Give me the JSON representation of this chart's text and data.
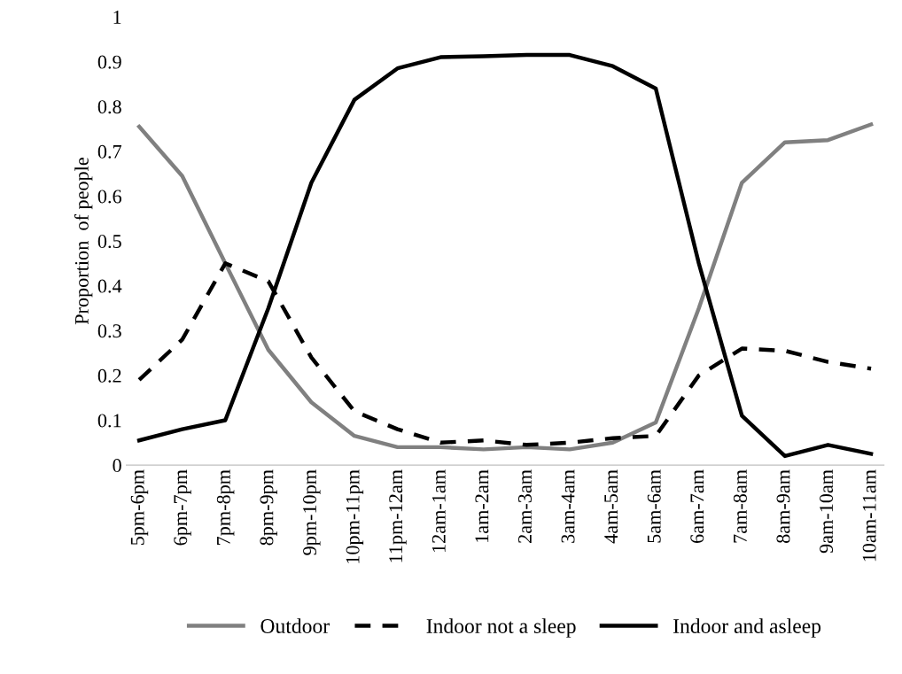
{
  "chart_data": {
    "type": "line",
    "ylabel": "Proportion  of people",
    "categories": [
      "5pm-6pm",
      "6pm-7pm",
      "7pm-8pm",
      "8pm-9pm",
      "9pm-10pm",
      "10pm-11pm",
      "11pm-12am",
      "12am-1am",
      "1am-2am",
      "2am-3am",
      "3am-4am",
      "4am-5am",
      "5am-6am",
      "6am-7am",
      "7am-8am",
      "8am-9am",
      "9am-10am",
      "10am-11am"
    ],
    "series": [
      {
        "name": "Outdoor",
        "color": "#808080",
        "line_style": "solid",
        "values": [
          0.755,
          0.645,
          0.45,
          0.257,
          0.14,
          0.065,
          0.04,
          0.04,
          0.035,
          0.04,
          0.035,
          0.05,
          0.095,
          0.35,
          0.63,
          0.72,
          0.725,
          0.76
        ]
      },
      {
        "name": "Indoor not a sleep",
        "color": "#000000",
        "line_style": "dashed",
        "values": [
          0.19,
          0.28,
          0.45,
          0.41,
          0.24,
          0.12,
          0.08,
          0.05,
          0.055,
          0.045,
          0.05,
          0.06,
          0.065,
          0.2,
          0.26,
          0.255,
          0.23,
          0.215
        ]
      },
      {
        "name": "Indoor and asleep",
        "color": "#000000",
        "line_style": "solid",
        "values": [
          0.055,
          0.08,
          0.1,
          0.35,
          0.63,
          0.815,
          0.885,
          0.91,
          0.912,
          0.915,
          0.915,
          0.89,
          0.84,
          0.45,
          0.11,
          0.02,
          0.045,
          0.025
        ]
      }
    ],
    "ylim": [
      0,
      1
    ],
    "yticks": [
      0,
      0.1,
      0.2,
      0.3,
      0.4,
      0.5,
      0.6,
      0.7,
      0.8,
      0.9,
      1
    ],
    "grid": false,
    "legend": "bottom",
    "marker": "none"
  }
}
